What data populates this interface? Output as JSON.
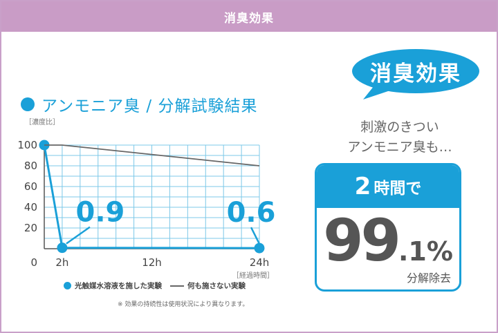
{
  "header": {
    "title": "消臭効果"
  },
  "chart_section": {
    "title": "アンモニア臭 / 分解試験結果",
    "y_unit": "［濃度比］",
    "x_unit": "［経過時間］",
    "legend": {
      "series1": "光触媒水溶液を施した実験",
      "series2": "何も施さない実験"
    },
    "note": "※ 効果の持続性は使用状況により異なります。"
  },
  "chart_data": {
    "type": "line",
    "title": "アンモニア臭 / 分解試験結果",
    "ylabel": "［濃度比］",
    "xlabel": "［経過時間］",
    "ylim": [
      0,
      100
    ],
    "yticks": [
      0,
      20,
      40,
      60,
      80,
      100
    ],
    "xticks": [
      {
        "value": 2,
        "label": "2h"
      },
      {
        "value": 12,
        "label": "12h"
      },
      {
        "value": 24,
        "label": "24h"
      }
    ],
    "xlim": [
      0,
      24
    ],
    "x_grid_step": 2,
    "y_grid_step": 10,
    "grid": true,
    "series": [
      {
        "name": "光触媒水溶液を施した実験",
        "color": "#1aa0d8",
        "points": [
          {
            "x": 0,
            "y": 100
          },
          {
            "x": 2,
            "y": 0.9
          },
          {
            "x": 24,
            "y": 0.6
          }
        ],
        "labeled_points": [
          {
            "x": 2,
            "y": 0.9,
            "label": "0.9"
          },
          {
            "x": 24,
            "y": 0.6,
            "label": "0.6"
          }
        ]
      },
      {
        "name": "何も施さない実験",
        "color": "#666666",
        "points": [
          {
            "x": 0,
            "y": 100
          },
          {
            "x": 2,
            "y": 100
          },
          {
            "x": 24,
            "y": 80
          }
        ]
      }
    ]
  },
  "promo": {
    "bubble": "消臭効果",
    "subtitle_line1": "刺激のきつい",
    "subtitle_line2": "アンモニア臭も…",
    "box_time_number": "2",
    "box_time_text": "時間で",
    "box_percent_int": "99",
    "box_percent_dec": ".1%",
    "box_caption": "分解除去",
    "accent_color": "#1aa0d8"
  }
}
